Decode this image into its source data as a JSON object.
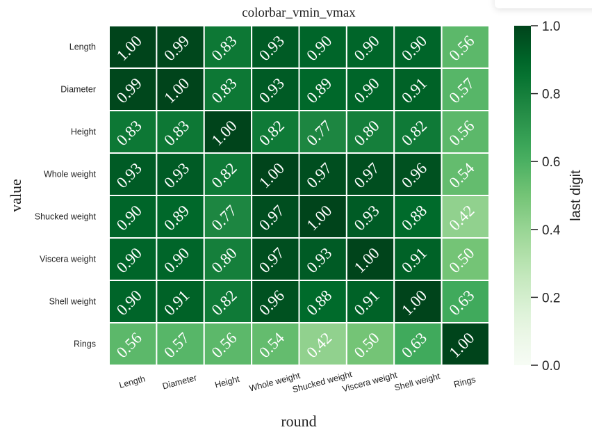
{
  "chart_data": {
    "type": "heatmap",
    "title": "colorbar_vmin_vmax",
    "xlabel": "round",
    "ylabel": "value",
    "x_categories": [
      "Length",
      "Diameter",
      "Height",
      "Whole weight",
      "Shucked weight",
      "Viscera weight",
      "Shell weight",
      "Rings"
    ],
    "y_categories": [
      "Length",
      "Diameter",
      "Height",
      "Whole weight",
      "Shucked weight",
      "Viscera weight",
      "Shell weight",
      "Rings"
    ],
    "values": [
      [
        1.0,
        0.99,
        0.83,
        0.93,
        0.9,
        0.9,
        0.9,
        0.56
      ],
      [
        0.99,
        1.0,
        0.83,
        0.93,
        0.89,
        0.9,
        0.91,
        0.57
      ],
      [
        0.83,
        0.83,
        1.0,
        0.82,
        0.77,
        0.8,
        0.82,
        0.56
      ],
      [
        0.93,
        0.93,
        0.82,
        1.0,
        0.97,
        0.97,
        0.96,
        0.54
      ],
      [
        0.9,
        0.89,
        0.77,
        0.97,
        1.0,
        0.93,
        0.88,
        0.42
      ],
      [
        0.9,
        0.9,
        0.8,
        0.97,
        0.93,
        1.0,
        0.91,
        0.5
      ],
      [
        0.9,
        0.91,
        0.82,
        0.96,
        0.88,
        0.91,
        1.0,
        0.63
      ],
      [
        0.56,
        0.57,
        0.56,
        0.54,
        0.42,
        0.5,
        0.63,
        1.0
      ]
    ],
    "value_format": "0.00",
    "colormap": "Greens",
    "colormap_stops": [
      "#f7fcf5",
      "#e5f5e0",
      "#c7e9c0",
      "#a1d99b",
      "#74c476",
      "#41ab5d",
      "#238b45",
      "#006d2c",
      "#00441b"
    ],
    "colorbar": {
      "label": "last digit",
      "vmin": 0.0,
      "vmax": 1.0,
      "ticks": [
        "0.0",
        "0.2",
        "0.4",
        "0.6",
        "0.8",
        "1.0"
      ]
    },
    "annotation_color": "#ffffff",
    "grid": false
  }
}
